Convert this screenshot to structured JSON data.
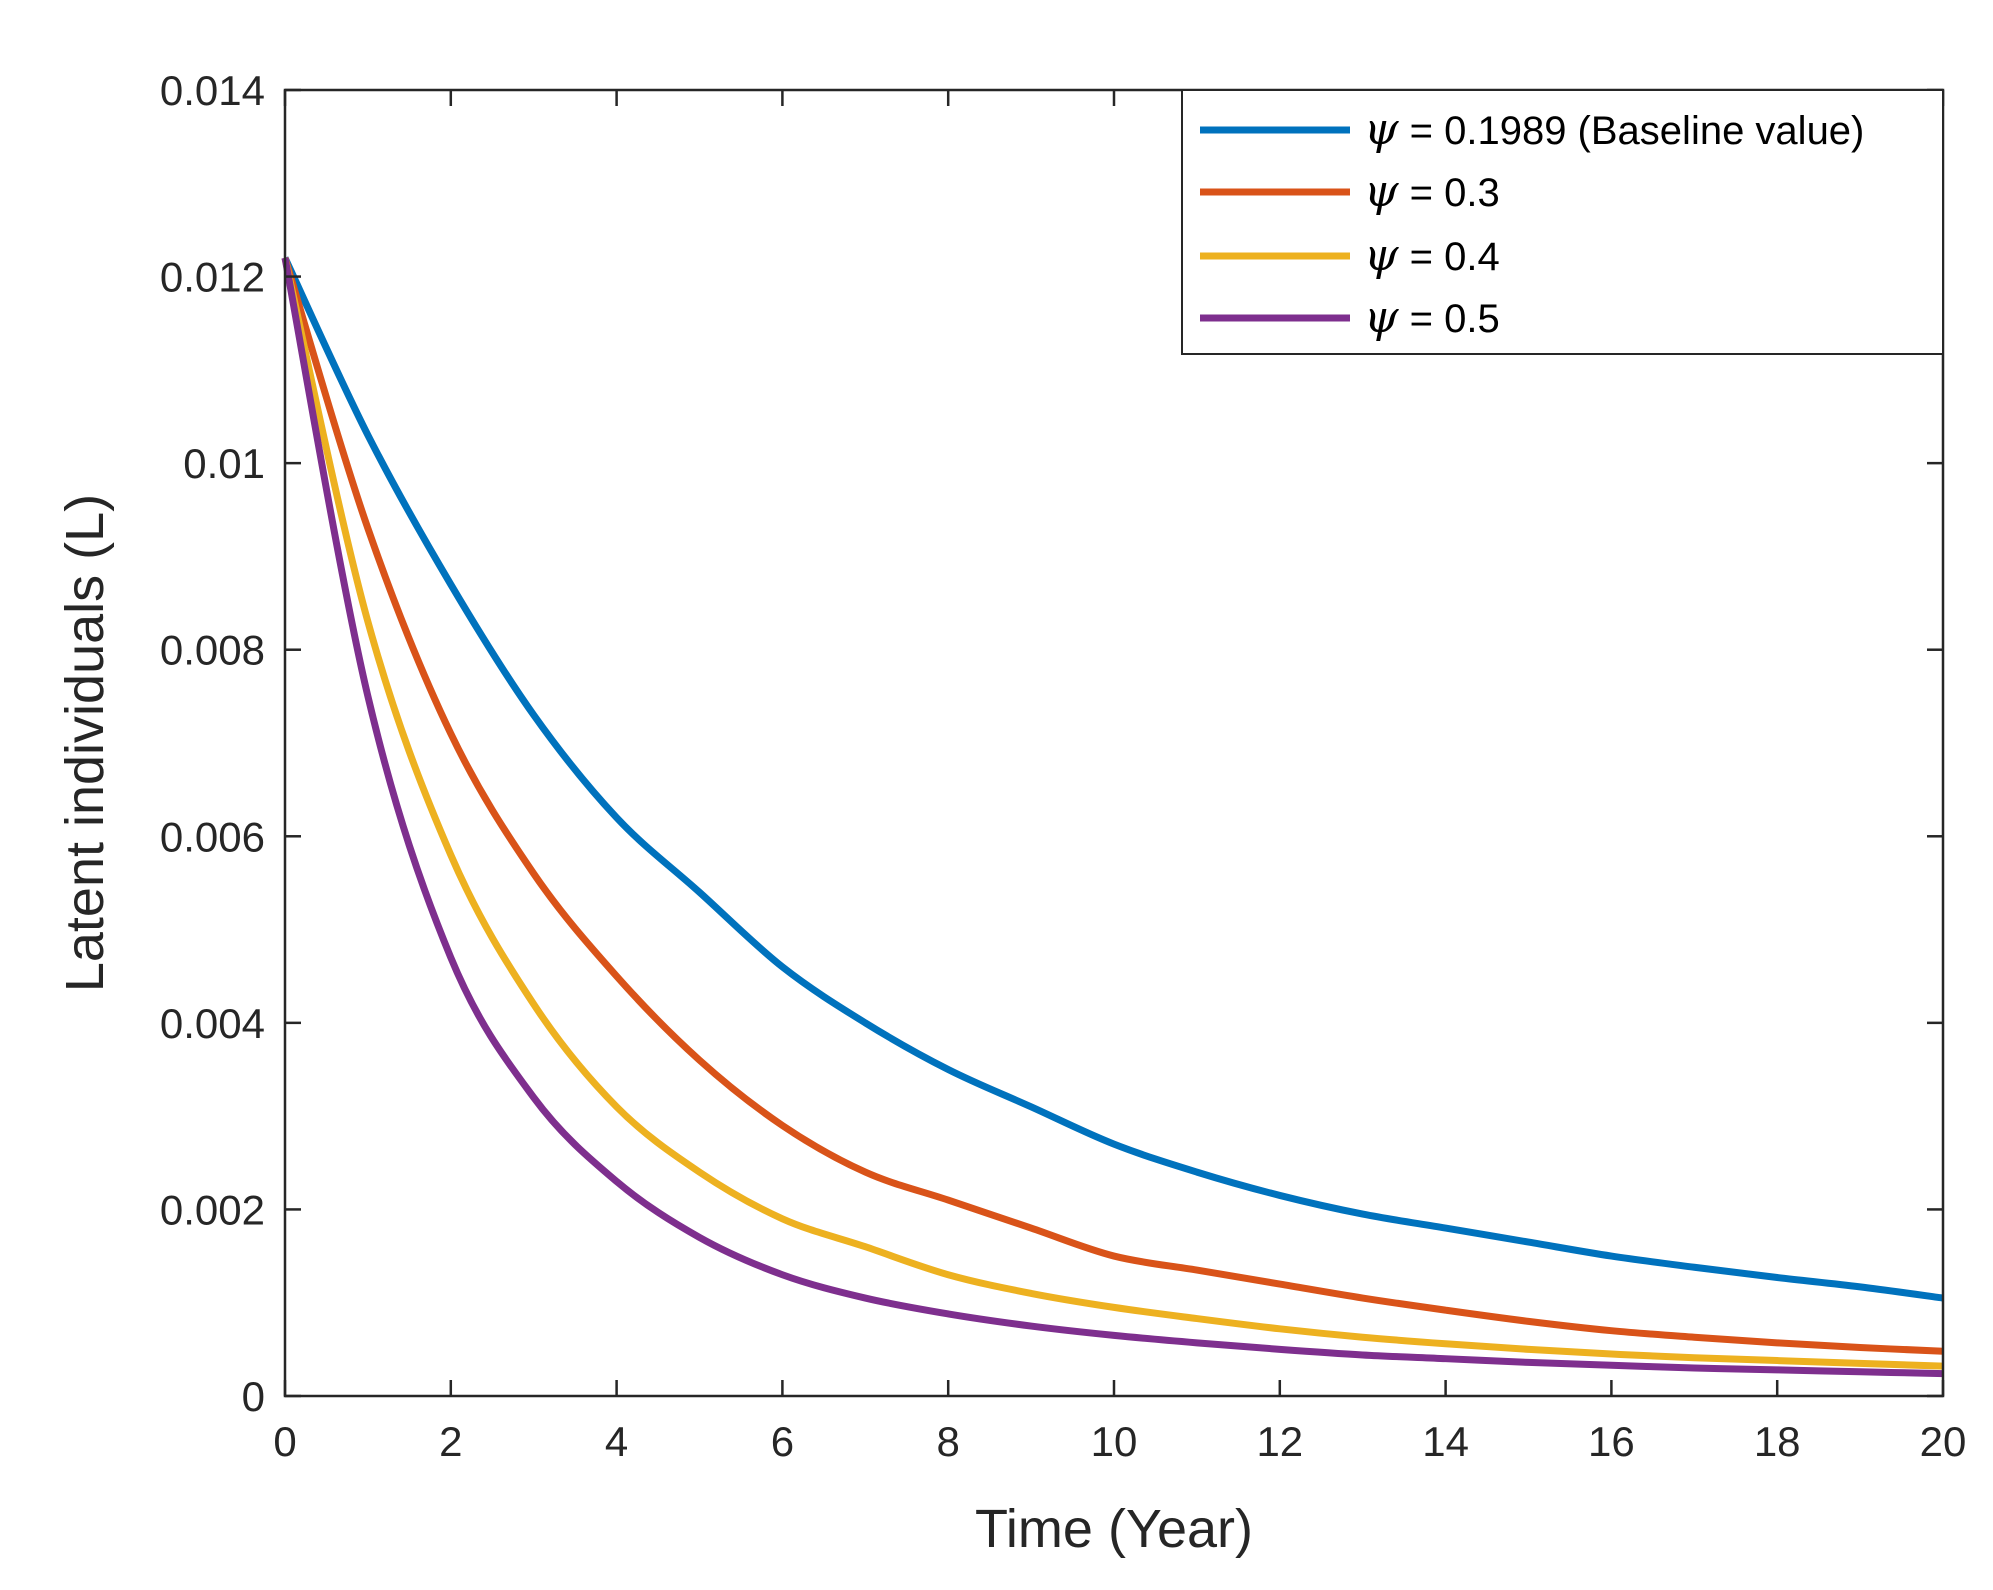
{
  "chart_data": {
    "type": "line",
    "title": "",
    "xlabel": "Time (Year)",
    "ylabel": "Latent individuals (L)",
    "xlim": [
      0,
      20
    ],
    "ylim": [
      0,
      0.014
    ],
    "xticks": [
      0,
      2,
      4,
      6,
      8,
      10,
      12,
      14,
      16,
      18,
      20
    ],
    "xtick_labels": [
      "0",
      "2",
      "4",
      "6",
      "8",
      "10",
      "12",
      "14",
      "16",
      "18",
      "20"
    ],
    "yticks": [
      0,
      0.002,
      0.004,
      0.006,
      0.008,
      0.01,
      0.012,
      0.014
    ],
    "ytick_labels": [
      "0",
      "0.002",
      "0.004",
      "0.006",
      "0.008",
      "0.01",
      "0.012",
      "0.014"
    ],
    "legend_position": "top-right",
    "grid": false,
    "x": [
      0,
      1,
      2,
      3,
      4,
      5,
      6,
      7,
      8,
      9,
      10,
      11,
      12,
      13,
      14,
      15,
      16,
      17,
      18,
      19,
      20
    ],
    "series": [
      {
        "name": "ψ = 0.1989 (Baseline value)",
        "symbol": "ψ",
        "rest": " = 0.1989 (Baseline value)",
        "color": "#0072BD",
        "values": [
          0.0122,
          0.0103,
          0.0087,
          0.0073,
          0.0062,
          0.0054,
          0.0046,
          0.004,
          0.0035,
          0.0031,
          0.0027,
          0.0024,
          0.00215,
          0.00195,
          0.0018,
          0.00165,
          0.0015,
          0.00138,
          0.00127,
          0.00117,
          0.00105
        ]
      },
      {
        "name": "ψ = 0.3",
        "symbol": "ψ",
        "rest": " = 0.3",
        "color": "#D95319",
        "values": [
          0.0122,
          0.0093,
          0.0071,
          0.0056,
          0.0045,
          0.0036,
          0.0029,
          0.0024,
          0.0021,
          0.0018,
          0.0015,
          0.00135,
          0.0012,
          0.00105,
          0.00092,
          0.0008,
          0.0007,
          0.00063,
          0.00057,
          0.00052,
          0.00048
        ]
      },
      {
        "name": "ψ = 0.4",
        "symbol": "ψ",
        "rest": " = 0.4",
        "color": "#EDB120",
        "values": [
          0.0122,
          0.0083,
          0.0058,
          0.0042,
          0.0031,
          0.0024,
          0.0019,
          0.0016,
          0.0013,
          0.0011,
          0.00095,
          0.00083,
          0.00072,
          0.00063,
          0.00056,
          0.0005,
          0.00045,
          0.00041,
          0.00038,
          0.00035,
          0.00032
        ]
      },
      {
        "name": "ψ = 0.5",
        "symbol": "ψ",
        "rest": " = 0.5",
        "color": "#7E2F8E",
        "values": [
          0.0122,
          0.0075,
          0.0047,
          0.0032,
          0.0023,
          0.0017,
          0.0013,
          0.00105,
          0.00088,
          0.00075,
          0.00065,
          0.00057,
          0.0005,
          0.00044,
          0.0004,
          0.00036,
          0.00033,
          0.0003,
          0.00028,
          0.00026,
          0.00024
        ]
      }
    ]
  }
}
